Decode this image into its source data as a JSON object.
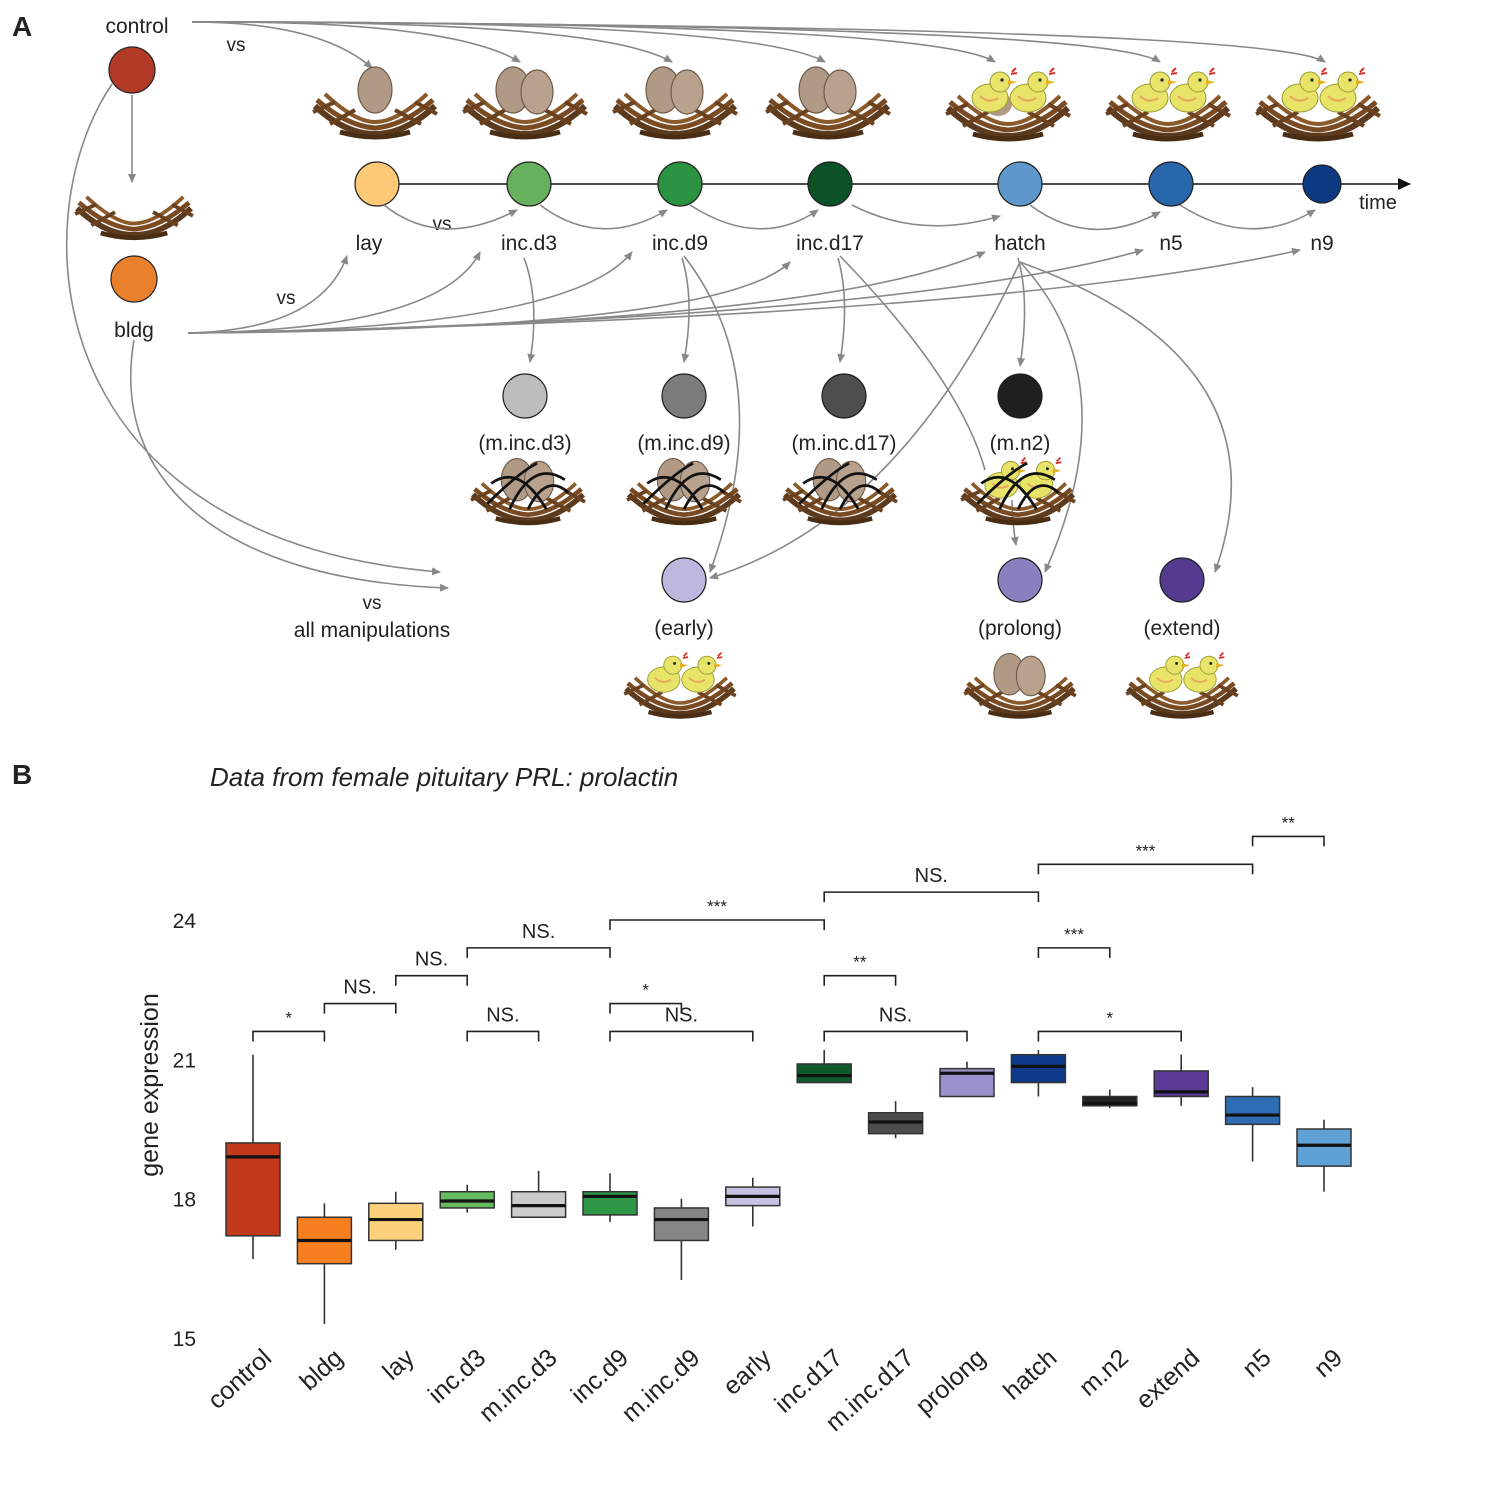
{
  "panel_a": {
    "letter": "A",
    "control_label": "control",
    "bldg_label": "bldg",
    "vs_label": "vs",
    "all_manipulations_label": "all manipulations",
    "time_label": "time",
    "timeline": [
      {
        "label": "lay",
        "color": "#FDC977"
      },
      {
        "label": "inc.d3",
        "color": "#67B05E"
      },
      {
        "label": "inc.d9",
        "color": "#2A9240"
      },
      {
        "label": "inc.d17",
        "color": "#0B5227"
      },
      {
        "label": "hatch",
        "color": "#5F98CD"
      },
      {
        "label": "n5",
        "color": "#2867AB"
      },
      {
        "label": "n9",
        "color": "#0B3A82"
      }
    ],
    "manipulations": [
      {
        "label": "(m.inc.d3)",
        "color": "#BDBDBD"
      },
      {
        "label": "(m.inc.d9)",
        "color": "#7B7B7B"
      },
      {
        "label": "(m.inc.d17)",
        "color": "#4F4F4F"
      },
      {
        "label": "(m.n2)",
        "color": "#1F1F1F"
      }
    ],
    "timing": [
      {
        "label": "(early)",
        "color": "#BDB9DE"
      },
      {
        "label": "(prolong)",
        "color": "#8A80BF"
      },
      {
        "label": "(extend)",
        "color": "#553A92"
      }
    ],
    "control_color": "#B33A26",
    "bldg_color": "#E9802C"
  },
  "panel_b": {
    "letter": "B",
    "title": "Data from female pituitary PRL: prolactin"
  },
  "chart_data": {
    "type": "box",
    "title": "Data from female pituitary PRL: prolactin",
    "ylabel": "gene expression",
    "xlabel": "",
    "ylim": [
      15,
      25
    ],
    "yticks": [
      15,
      18,
      21,
      24
    ],
    "categories": [
      "control",
      "bldg",
      "lay",
      "inc.d3",
      "m.inc.d3",
      "inc.d9",
      "m.inc.d9",
      "early",
      "inc.d17",
      "m.inc.d17",
      "prolong",
      "hatch",
      "m.n2",
      "extend",
      "n5",
      "n9"
    ],
    "boxes": [
      {
        "name": "control",
        "color": "#C1381B",
        "min": 16.7,
        "q1": 17.2,
        "median": 18.9,
        "q3": 19.2,
        "max": 21.1
      },
      {
        "name": "bldg",
        "color": "#F6801F",
        "min": 15.3,
        "q1": 16.6,
        "median": 17.1,
        "q3": 17.6,
        "max": 17.9
      },
      {
        "name": "lay",
        "color": "#FDD07C",
        "min": 16.9,
        "q1": 17.1,
        "median": 17.55,
        "q3": 17.9,
        "max": 18.15
      },
      {
        "name": "inc.d3",
        "color": "#66BB5E",
        "min": 17.7,
        "q1": 17.8,
        "median": 17.95,
        "q3": 18.15,
        "max": 18.3
      },
      {
        "name": "m.inc.d3",
        "color": "#CBCBCB",
        "min": 17.6,
        "q1": 17.6,
        "median": 17.85,
        "q3": 18.15,
        "max": 18.6
      },
      {
        "name": "inc.d9",
        "color": "#2C9845",
        "min": 17.5,
        "q1": 17.65,
        "median": 18.05,
        "q3": 18.15,
        "max": 18.55
      },
      {
        "name": "m.inc.d9",
        "color": "#858585",
        "min": 16.25,
        "q1": 17.1,
        "median": 17.55,
        "q3": 17.8,
        "max": 18.0
      },
      {
        "name": "early",
        "color": "#C5C2E2",
        "min": 17.4,
        "q1": 17.85,
        "median": 18.05,
        "q3": 18.25,
        "max": 18.45
      },
      {
        "name": "inc.d17",
        "color": "#0D5B2A",
        "min": 20.5,
        "q1": 20.5,
        "median": 20.65,
        "q3": 20.9,
        "max": 21.2
      },
      {
        "name": "m.inc.d17",
        "color": "#4D4D4D",
        "min": 19.3,
        "q1": 19.4,
        "median": 19.65,
        "q3": 19.85,
        "max": 20.1
      },
      {
        "name": "prolong",
        "color": "#9A90CC",
        "min": 20.2,
        "q1": 20.2,
        "median": 20.7,
        "q3": 20.8,
        "max": 20.95
      },
      {
        "name": "hatch",
        "color": "#0F3A8C",
        "min": 20.2,
        "q1": 20.5,
        "median": 20.85,
        "q3": 21.1,
        "max": 21.2
      },
      {
        "name": "m.n2",
        "color": "#222222",
        "min": 19.95,
        "q1": 20.0,
        "median": 20.05,
        "q3": 20.2,
        "max": 20.35
      },
      {
        "name": "extend",
        "color": "#5B3A98",
        "min": 20.0,
        "q1": 20.2,
        "median": 20.3,
        "q3": 20.75,
        "max": 21.1
      },
      {
        "name": "n5",
        "color": "#2C6DB4",
        "min": 18.8,
        "q1": 19.6,
        "median": 19.8,
        "q3": 20.2,
        "max": 20.4
      },
      {
        "name": "n9",
        "color": "#5FA1D4",
        "min": 18.15,
        "q1": 18.7,
        "median": 19.15,
        "q3": 19.5,
        "max": 19.7
      }
    ],
    "comparisons": [
      {
        "from": "control",
        "to": "bldg",
        "y": 21.6,
        "label": "*"
      },
      {
        "from": "bldg",
        "to": "lay",
        "y": 22.2,
        "label": "NS."
      },
      {
        "from": "lay",
        "to": "inc.d3",
        "y": 22.8,
        "label": "NS."
      },
      {
        "from": "inc.d3",
        "to": "inc.d9",
        "y": 23.4,
        "label": "NS."
      },
      {
        "from": "inc.d3",
        "to": "m.inc.d3",
        "y": 21.6,
        "label": "NS."
      },
      {
        "from": "inc.d9",
        "to": "m.inc.d9",
        "y": 22.2,
        "label": "*"
      },
      {
        "from": "inc.d9",
        "to": "early",
        "y": 21.6,
        "label": "NS."
      },
      {
        "from": "inc.d9",
        "to": "inc.d17",
        "y": 24.0,
        "label": "***"
      },
      {
        "from": "inc.d17",
        "to": "m.inc.d17",
        "y": 22.8,
        "label": "**"
      },
      {
        "from": "inc.d17",
        "to": "prolong",
        "y": 21.6,
        "label": "NS."
      },
      {
        "from": "inc.d17",
        "to": "hatch",
        "y": 24.6,
        "label": "NS."
      },
      {
        "from": "hatch",
        "to": "m.n2",
        "y": 23.4,
        "label": "***"
      },
      {
        "from": "hatch",
        "to": "extend",
        "y": 21.6,
        "label": "*"
      },
      {
        "from": "hatch",
        "to": "n5",
        "y": 25.2,
        "label": "***"
      },
      {
        "from": "n5",
        "to": "n9",
        "y": 25.8,
        "label": "**"
      }
    ]
  }
}
